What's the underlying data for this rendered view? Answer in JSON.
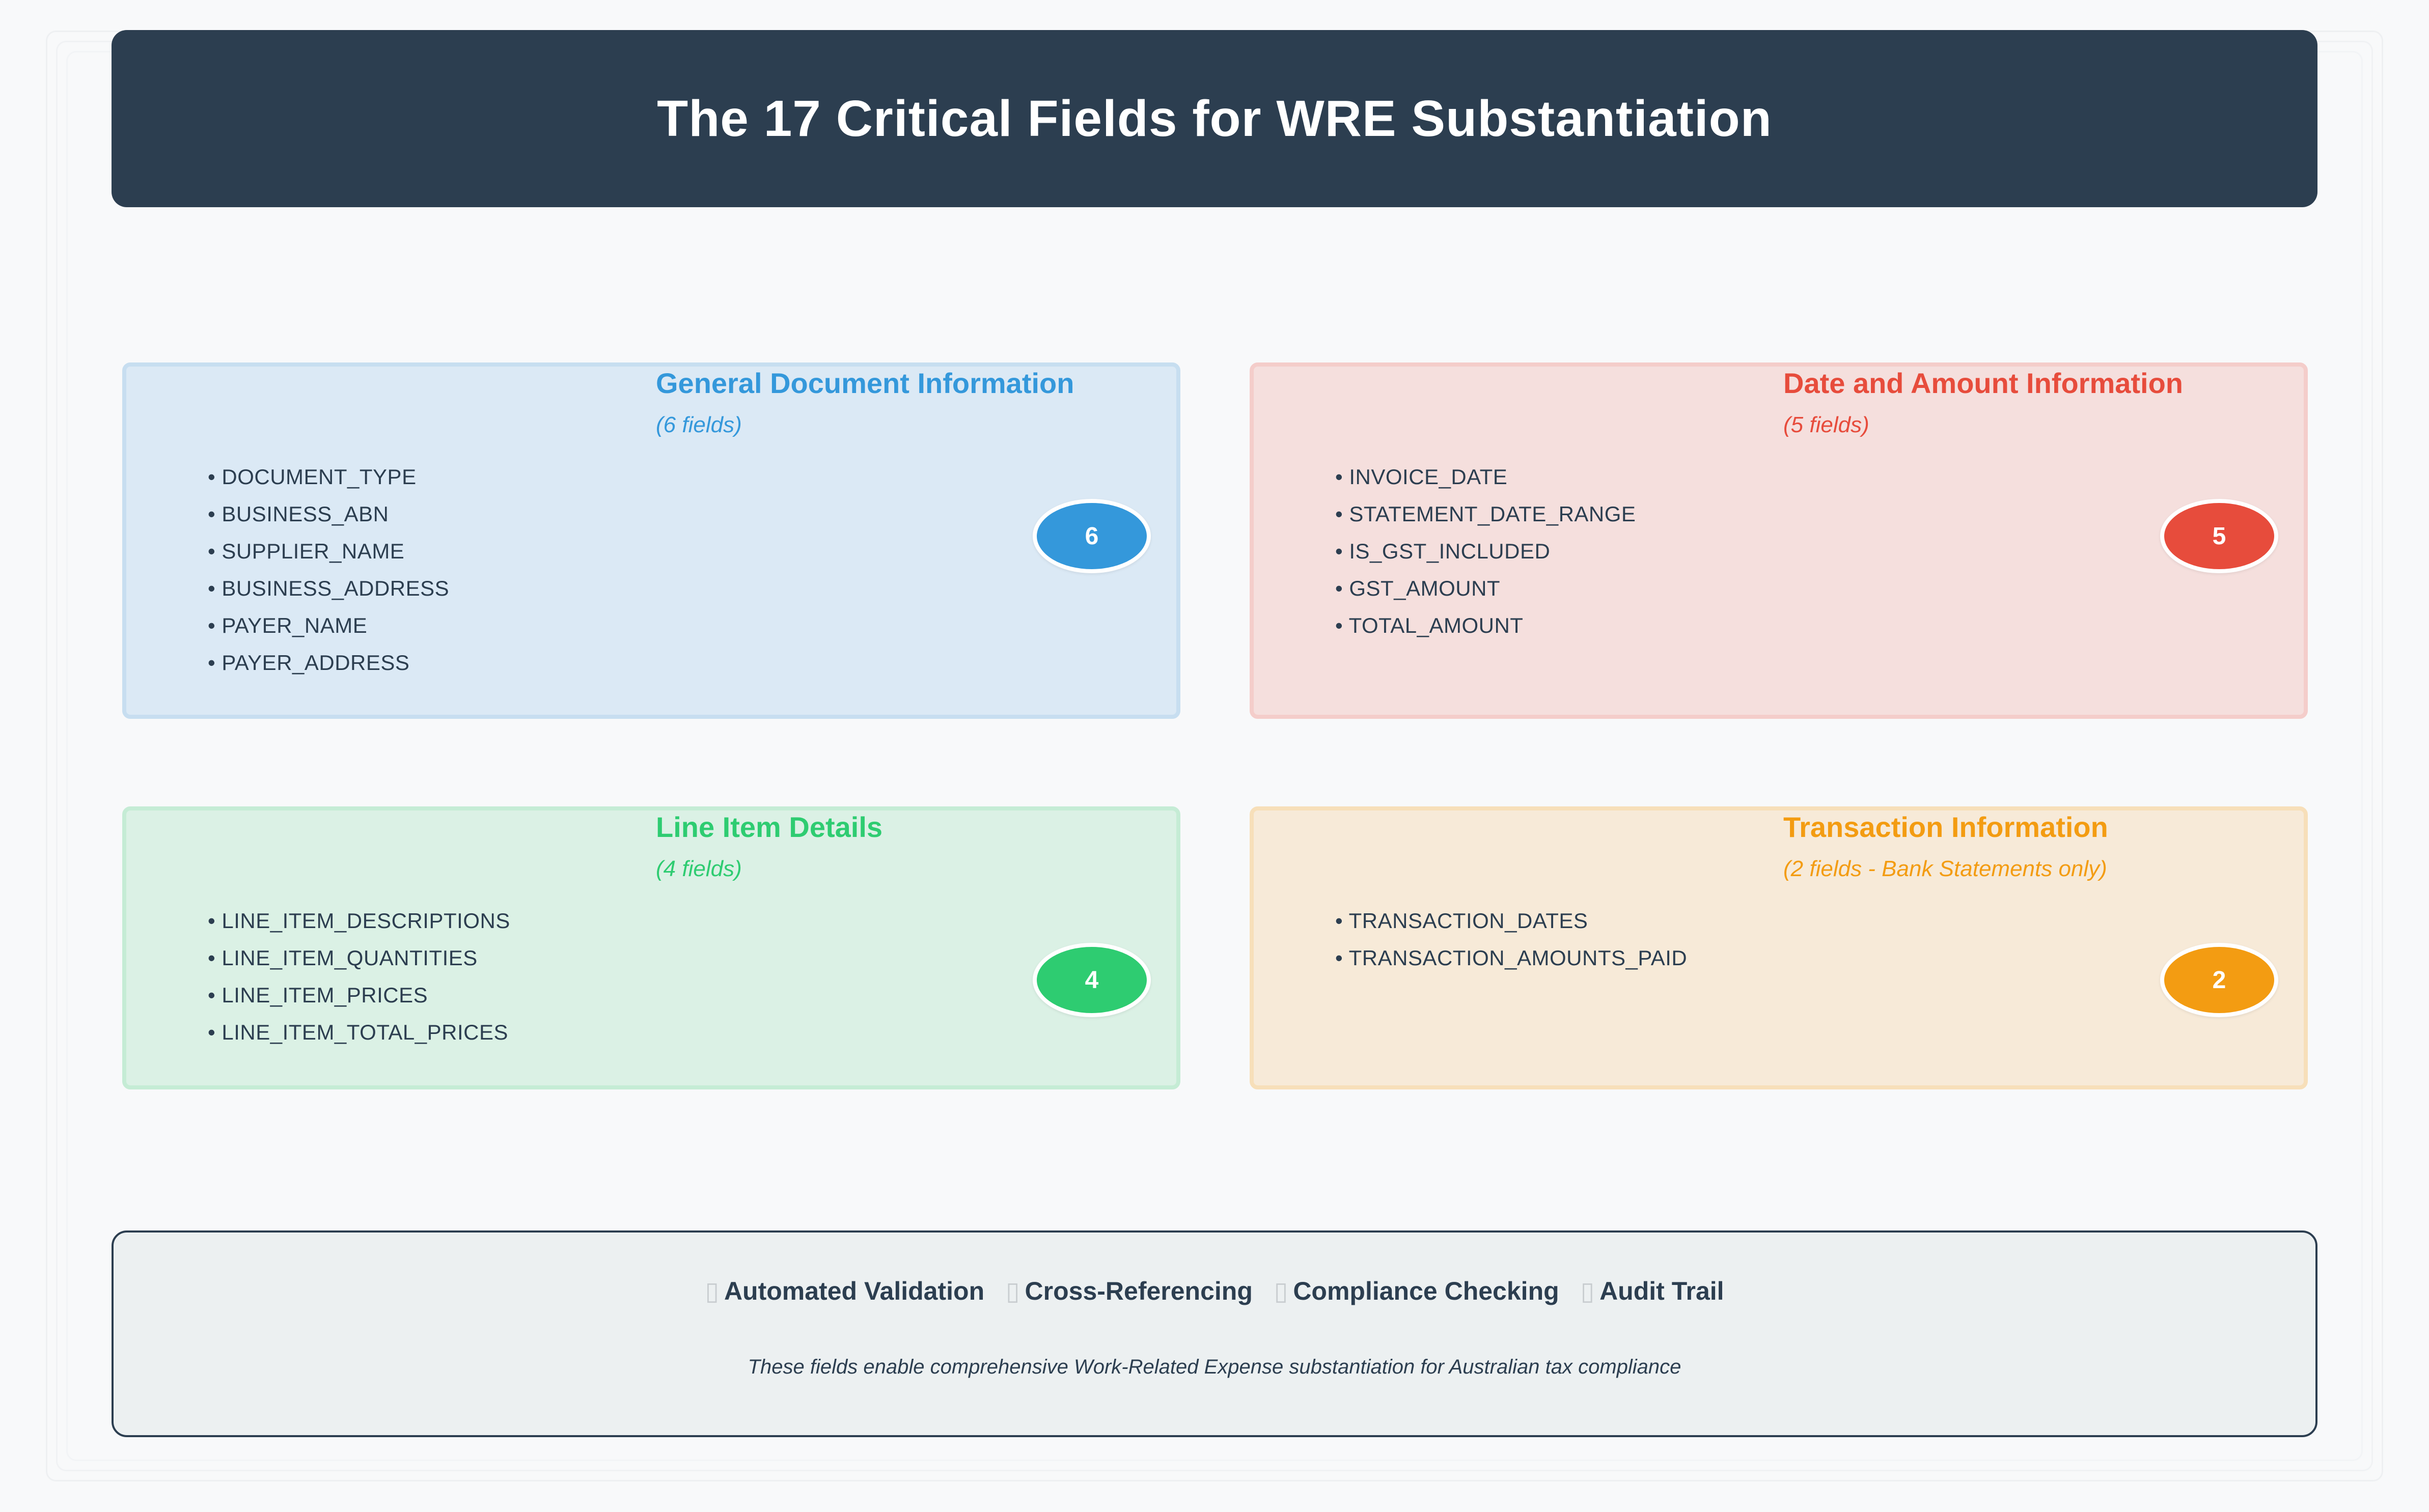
{
  "title": "The 17 Critical Fields for WRE Substantiation",
  "colors": {
    "header": "#2c3e50",
    "general": "#3498db",
    "date_amount": "#e74c3c",
    "line_items": "#2ecc71",
    "transaction": "#f39c12"
  },
  "categories": [
    {
      "title": "General Document Information",
      "subtitle": "(6 fields)",
      "count": "6",
      "fields": [
        "• DOCUMENT_TYPE",
        "• BUSINESS_ABN",
        "• SUPPLIER_NAME",
        "• BUSINESS_ADDRESS",
        "• PAYER_NAME",
        "• PAYER_ADDRESS"
      ]
    },
    {
      "title": "Date and Amount Information",
      "subtitle": "(5 fields)",
      "count": "5",
      "fields": [
        "• INVOICE_DATE",
        "• STATEMENT_DATE_RANGE",
        "• IS_GST_INCLUDED",
        "• GST_AMOUNT",
        "• TOTAL_AMOUNT"
      ]
    },
    {
      "title": "Line Item Details",
      "subtitle": "(4 fields)",
      "count": "4",
      "fields": [
        "• LINE_ITEM_DESCRIPTIONS",
        "• LINE_ITEM_QUANTITIES",
        "• LINE_ITEM_PRICES",
        "• LINE_ITEM_TOTAL_PRICES"
      ]
    },
    {
      "title": "Transaction Information",
      "subtitle": "(2 fields - Bank Statements only)",
      "count": "2",
      "fields": [
        "• TRANSACTION_DATES",
        "• TRANSACTION_AMOUNTS_PAID"
      ]
    }
  ],
  "footer": {
    "features": [
      {
        "icon": "check-icon",
        "label": "Automated Validation"
      },
      {
        "icon": "check-icon",
        "label": "Cross-Referencing"
      },
      {
        "icon": "check-icon",
        "label": "Compliance Checking"
      },
      {
        "icon": "check-icon",
        "label": "Audit Trail"
      }
    ],
    "note": "These fields enable comprehensive Work-Related Expense substantiation for Australian tax compliance"
  }
}
